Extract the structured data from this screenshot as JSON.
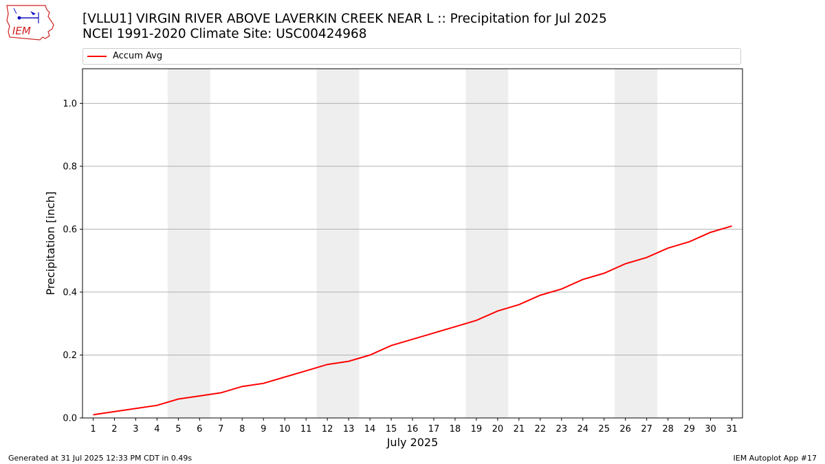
{
  "header": {
    "title": "[VLLU1] VIRGIN RIVER ABOVE LAVERKIN CREEK NEAR L :: Precipitation for Jul 2025",
    "subtitle": "NCEI 1991-2020 Climate Site: USC00424968",
    "logo_text": "IEM"
  },
  "footer": {
    "left": "Generated at 31 Jul 2025 12:33 PM CDT in 0.49s",
    "right": "IEM Autoplot App #17"
  },
  "chart_data": {
    "type": "line",
    "xlabel": "July 2025",
    "ylabel": "Precipitation [inch]",
    "x": [
      1,
      2,
      3,
      4,
      5,
      6,
      7,
      8,
      9,
      10,
      11,
      12,
      13,
      14,
      15,
      16,
      17,
      18,
      19,
      20,
      21,
      22,
      23,
      24,
      25,
      26,
      27,
      28,
      29,
      30,
      31
    ],
    "xlim": [
      0.5,
      31.5
    ],
    "ylim": [
      0,
      1.11
    ],
    "yticks": [
      "0.0",
      "0.2",
      "0.4",
      "0.6",
      "0.8",
      "1.0"
    ],
    "grid": "y",
    "legend": "top",
    "series": [
      {
        "name": "Accum Avg",
        "color": "#ff0000",
        "values": [
          0.01,
          0.02,
          0.03,
          0.04,
          0.06,
          0.07,
          0.08,
          0.1,
          0.11,
          0.13,
          0.15,
          0.17,
          0.18,
          0.2,
          0.23,
          0.25,
          0.27,
          0.29,
          0.31,
          0.34,
          0.36,
          0.39,
          0.41,
          0.44,
          0.46,
          0.49,
          0.51,
          0.54,
          0.56,
          0.59,
          0.61
        ]
      }
    ],
    "weekend_shading": [
      [
        5,
        6
      ],
      [
        12,
        13
      ],
      [
        19,
        20
      ],
      [
        26,
        27
      ]
    ],
    "shading_color": "#eeeeee"
  }
}
